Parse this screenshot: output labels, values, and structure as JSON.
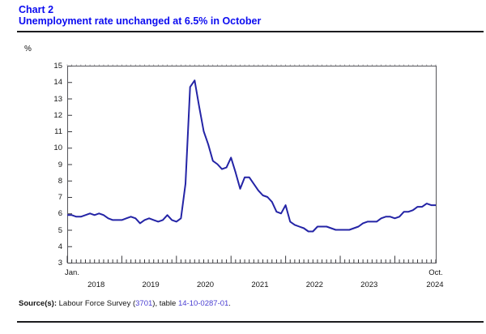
{
  "header": {
    "chart_label": "Chart 2",
    "title": "Unemployment rate unchanged at 6.5% in October",
    "title_color": "#0b0bf0"
  },
  "axis": {
    "unit_label": "%",
    "y_tick_labels": [
      "15",
      "14",
      "13",
      "12",
      "11",
      "10",
      "9",
      "8",
      "7",
      "6",
      "5",
      "4",
      "3"
    ],
    "x_year_labels": [
      "2018",
      "2019",
      "2020",
      "2021",
      "2022",
      "2023",
      "2024"
    ],
    "x_left_label": "Jan.",
    "x_right_label": "Oct."
  },
  "source": {
    "prefix": "Source(s):",
    "text_before": " Labour Force Survey (",
    "link1": "3701",
    "text_mid": "), table ",
    "link2": "14-10-0287-01",
    "text_after": ".",
    "link_color": "#4a3ed2"
  },
  "chart_data": {
    "type": "line",
    "title": "Unemployment rate unchanged at 6.5% in October",
    "unit": "%",
    "ylim": [
      3,
      15
    ],
    "y_tick_step": 1,
    "x_monthly_from": "Jan. 2018",
    "x_monthly_to": "Oct. 2024",
    "grid": false,
    "legend": "none",
    "line_color": "#2424a6",
    "frame_color": "#55555a",
    "series": [
      {
        "name": "Unemployment rate (%)",
        "color": "#2424a6",
        "values": [
          5.9,
          5.9,
          5.8,
          5.8,
          5.9,
          6.0,
          5.9,
          6.0,
          5.9,
          5.7,
          5.6,
          5.6,
          5.6,
          5.7,
          5.8,
          5.7,
          5.4,
          5.6,
          5.7,
          5.6,
          5.5,
          5.6,
          5.9,
          5.6,
          5.5,
          5.7,
          7.8,
          13.7,
          14.1,
          12.5,
          11.0,
          10.2,
          9.2,
          9.0,
          8.7,
          8.8,
          9.4,
          8.5,
          7.5,
          8.2,
          8.2,
          7.8,
          7.4,
          7.1,
          7.0,
          6.7,
          6.1,
          6.0,
          6.5,
          5.5,
          5.3,
          5.2,
          5.1,
          4.9,
          4.9,
          5.2,
          5.2,
          5.2,
          5.1,
          5.0,
          5.0,
          5.0,
          5.0,
          5.1,
          5.2,
          5.4,
          5.5,
          5.5,
          5.5,
          5.7,
          5.8,
          5.8,
          5.7,
          5.8,
          6.1,
          6.1,
          6.2,
          6.4,
          6.4,
          6.6,
          6.5,
          6.5
        ]
      }
    ]
  }
}
